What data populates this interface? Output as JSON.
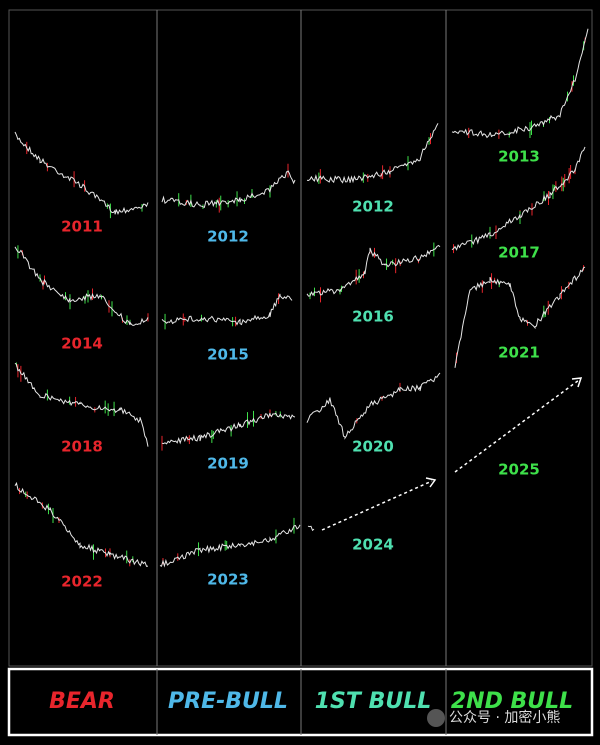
{
  "columns": [
    {
      "label": "BEAR",
      "years": [
        "2011",
        "2014",
        "2018",
        "2022"
      ]
    },
    {
      "label": "PRE-BULL",
      "years": [
        "2012",
        "2015",
        "2019",
        "2023"
      ]
    },
    {
      "label": "1ST BULL",
      "years": [
        "2012",
        "2016",
        "2020",
        "2024"
      ]
    },
    {
      "label": "2ND BULL",
      "years": [
        "2013",
        "2017",
        "2021",
        "2025"
      ]
    }
  ],
  "watermark": "公众号 · 加密小熊"
}
